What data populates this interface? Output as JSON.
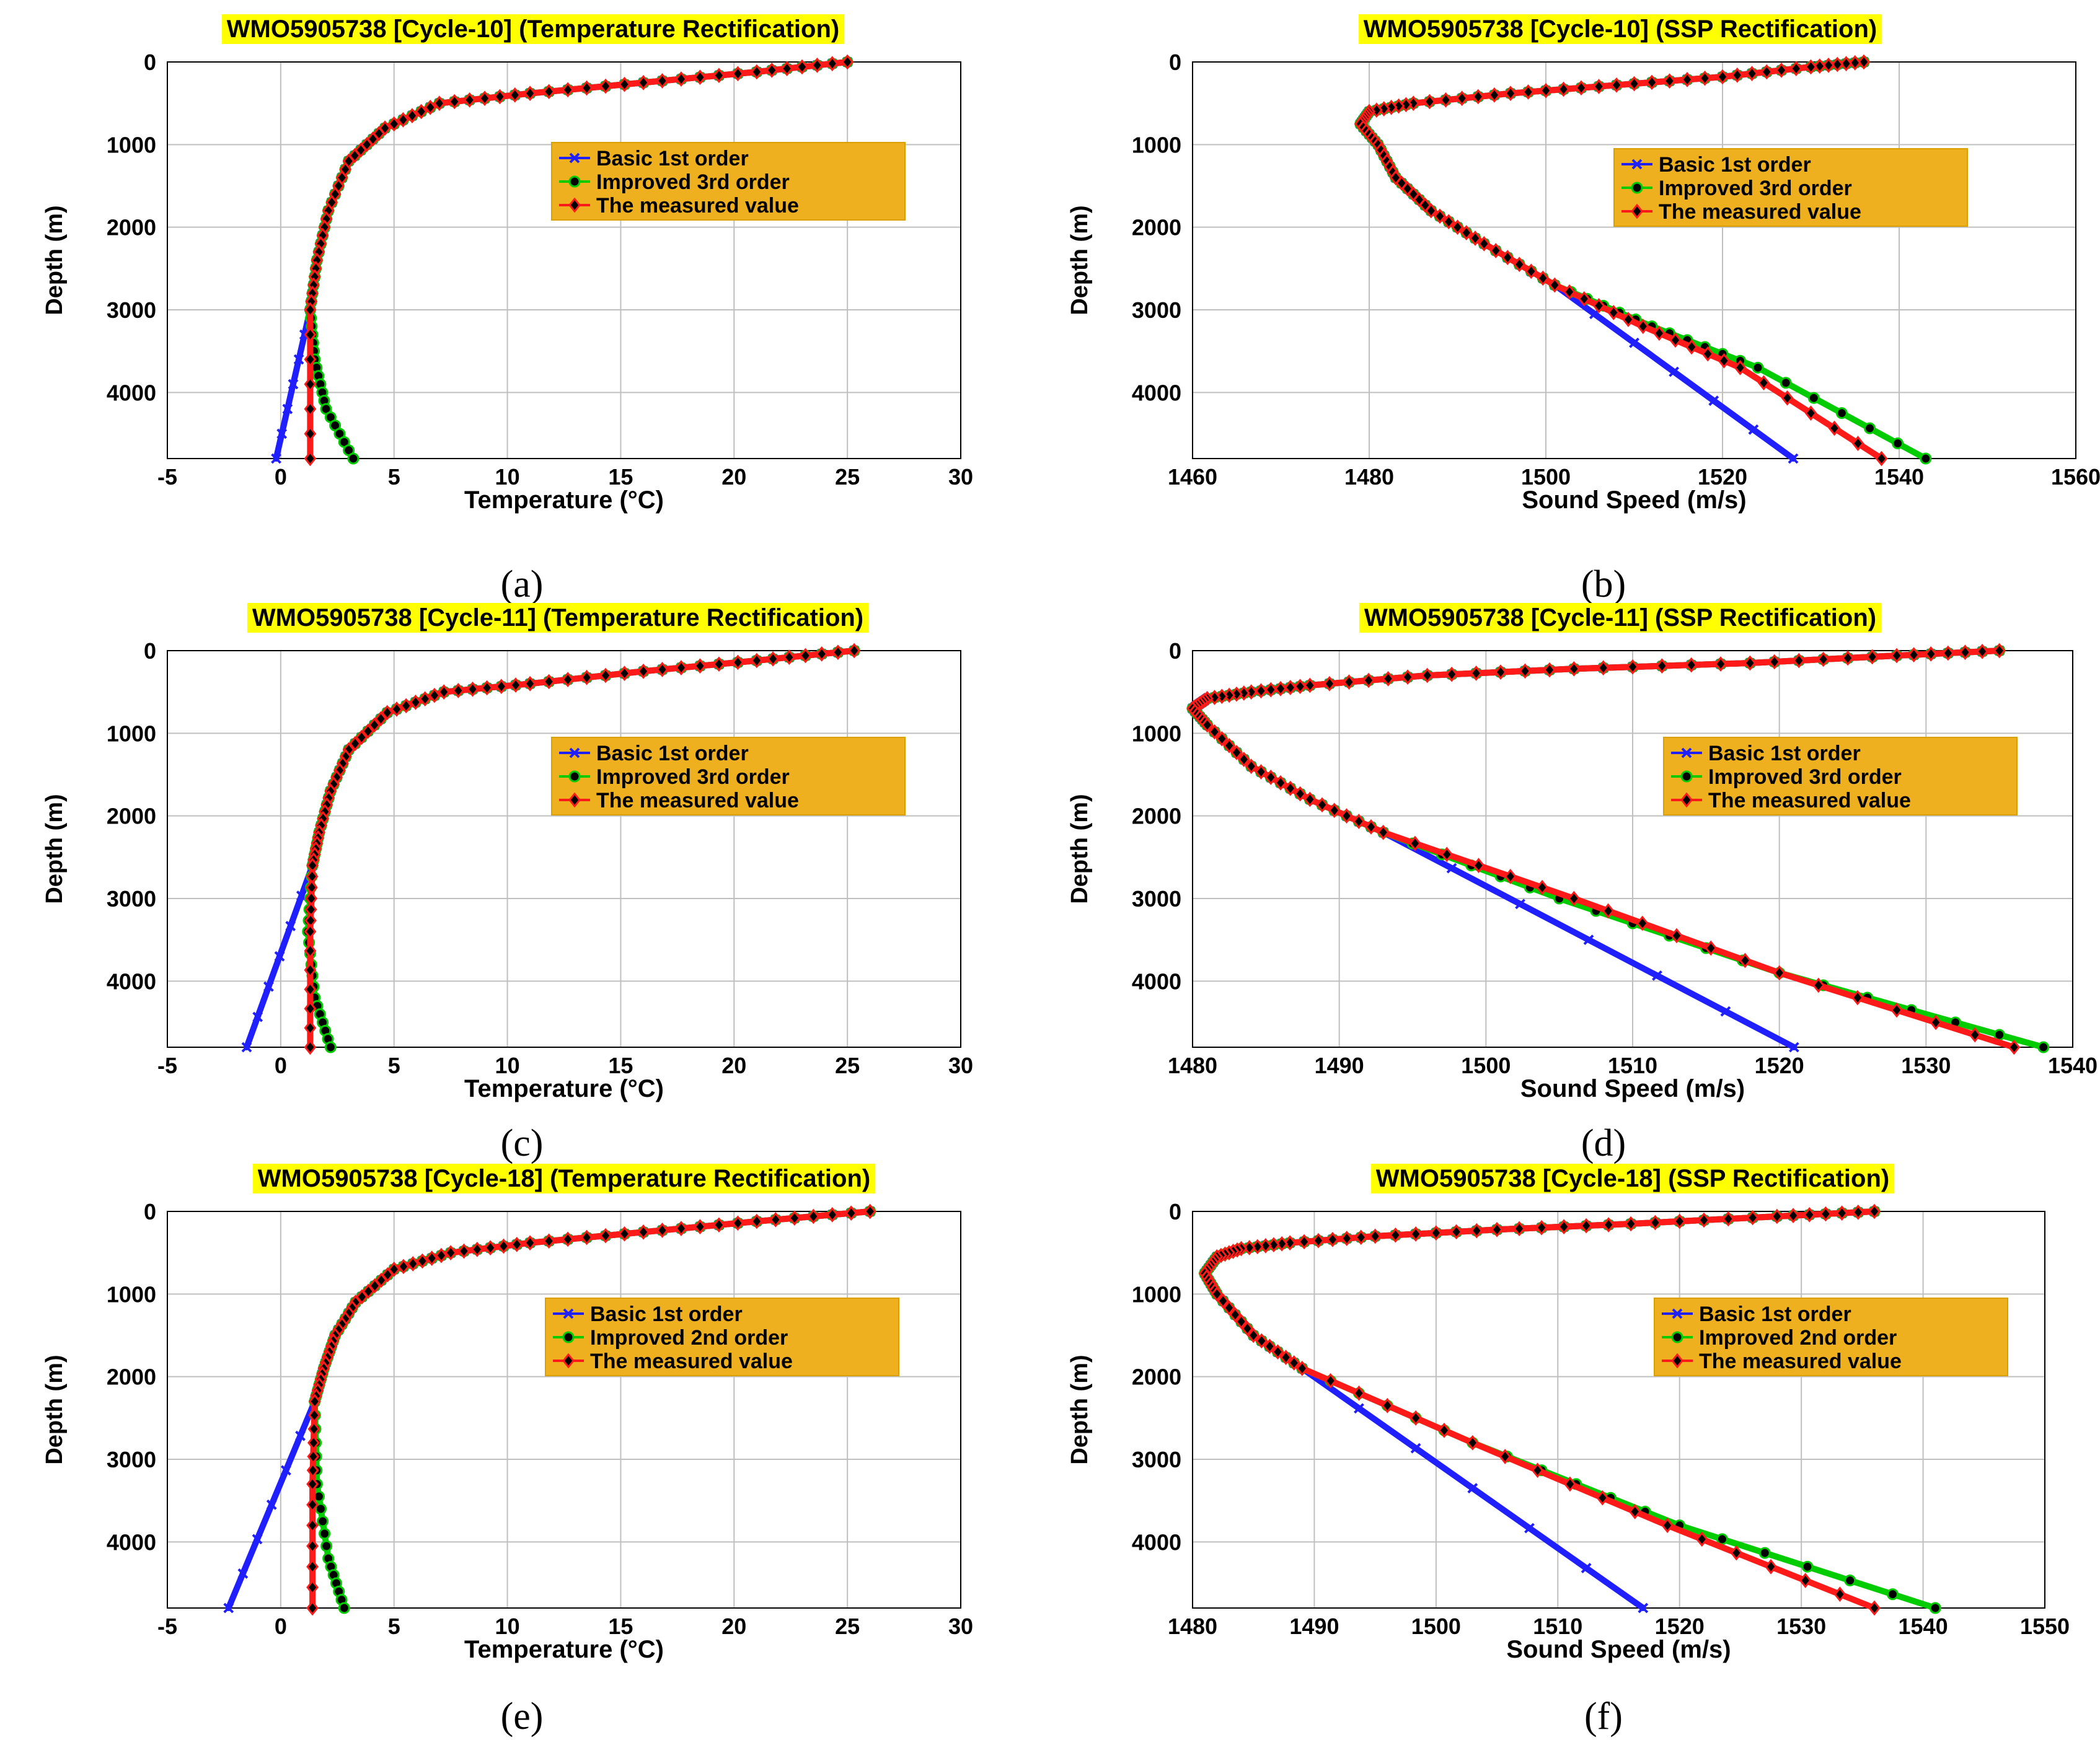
{
  "chart_data": [
    {
      "id": "a",
      "type": "line",
      "panel_label": "(a)",
      "title": "WMO5905738 [Cycle-10] (Temperature Rectification)",
      "xlabel": "Temperature (°C)",
      "ylabel": "Depth (m)",
      "xlim": [
        -5,
        30
      ],
      "ylim": [
        0,
        4800
      ],
      "y_inverted": true,
      "grid": true,
      "xticks": [
        -5,
        0,
        5,
        10,
        15,
        20,
        25,
        30
      ],
      "yticks": [
        0,
        1000,
        2000,
        3000,
        4000
      ],
      "legend_position": "upper-right",
      "series": [
        {
          "name": "Basic 1st order",
          "color": "#1f1fff",
          "marker": "x",
          "x": [
            1.3,
            1.6,
            2.1,
            3.0,
            4.6,
            7.0,
            11.0,
            16.0,
            21.0,
            25.0
          ],
          "y": [
            3000,
            2400,
            1800,
            1200,
            800,
            500,
            380,
            250,
            120,
            0
          ],
          "deep_x": [
            1.3,
            -0.2
          ],
          "deep_y": [
            3000,
            4800
          ]
        },
        {
          "name": "Improved 3rd order",
          "color": "#00cc00",
          "marker": "o",
          "x": [
            1.3,
            1.6,
            2.1,
            3.0,
            4.6,
            7.0,
            11.0,
            16.0,
            21.0,
            25.0
          ],
          "y": [
            3000,
            2400,
            1800,
            1200,
            800,
            500,
            380,
            250,
            120,
            0
          ],
          "deep_x": [
            1.3,
            1.5,
            2.0,
            3.2
          ],
          "deep_y": [
            3000,
            3600,
            4200,
            4800
          ]
        },
        {
          "name": "The measured value",
          "color": "#ff1a1a",
          "marker": "diamond",
          "x": [
            1.3,
            1.6,
            2.1,
            3.0,
            4.6,
            7.0,
            11.0,
            16.0,
            21.0,
            25.0
          ],
          "y": [
            3000,
            2400,
            1800,
            1200,
            800,
            500,
            380,
            250,
            120,
            0
          ],
          "deep_x": [
            1.3,
            1.3
          ],
          "deep_y": [
            3000,
            4800
          ]
        }
      ]
    },
    {
      "id": "b",
      "type": "line",
      "panel_label": "(b)",
      "title": "WMO5905738 [Cycle-10] (SSP Rectification)",
      "xlabel": "Sound Speed (m/s)",
      "ylabel": "Depth (m)",
      "xlim": [
        1460,
        1560
      ],
      "ylim": [
        0,
        4800
      ],
      "y_inverted": true,
      "grid": true,
      "xticks": [
        1460,
        1480,
        1500,
        1520,
        1540,
        1560
      ],
      "yticks": [
        0,
        1000,
        2000,
        3000,
        4000
      ],
      "legend_position": "upper-right",
      "series": [
        {
          "name": "Basic 1st order",
          "color": "#1f1fff",
          "marker": "x",
          "x": [
            1536,
            1530,
            1520,
            1508,
            1496,
            1485,
            1480,
            1479,
            1481,
            1483,
            1487,
            1493,
            1501
          ],
          "y": [
            0,
            60,
            180,
            280,
            380,
            500,
            600,
            750,
            1000,
            1400,
            1800,
            2200,
            2700
          ],
          "deep_x": [
            1501,
            1528
          ],
          "deep_y": [
            2700,
            4800
          ]
        },
        {
          "name": "Improved 3rd order",
          "color": "#00cc00",
          "marker": "o",
          "x": [
            1536,
            1530,
            1520,
            1508,
            1496,
            1485,
            1480,
            1479,
            1481,
            1483,
            1487,
            1493,
            1501
          ],
          "y": [
            0,
            60,
            180,
            280,
            380,
            500,
            600,
            750,
            1000,
            1400,
            1800,
            2200,
            2700
          ],
          "deep_x": [
            1501,
            1512,
            1524,
            1543
          ],
          "deep_y": [
            2700,
            3200,
            3700,
            4800
          ]
        },
        {
          "name": "The measured value",
          "color": "#ff1a1a",
          "marker": "diamond",
          "x": [
            1536,
            1530,
            1520,
            1508,
            1496,
            1485,
            1480,
            1479,
            1481,
            1483,
            1487,
            1493,
            1501
          ],
          "y": [
            0,
            60,
            180,
            280,
            380,
            500,
            600,
            750,
            1000,
            1400,
            1800,
            2200,
            2700
          ],
          "deep_x": [
            1501,
            1511,
            1522,
            1538
          ],
          "deep_y": [
            2700,
            3200,
            3700,
            4800
          ]
        }
      ]
    },
    {
      "id": "c",
      "type": "line",
      "panel_label": "(c)",
      "title": "WMO5905738 [Cycle-11] (Temperature Rectification)",
      "xlabel": "Temperature (°C)",
      "ylabel": "Depth (m)",
      "xlim": [
        -5,
        30
      ],
      "ylim": [
        0,
        4800
      ],
      "y_inverted": true,
      "grid": true,
      "xticks": [
        -5,
        0,
        5,
        10,
        15,
        20,
        25,
        30
      ],
      "yticks": [
        0,
        1000,
        2000,
        3000,
        4000
      ],
      "legend_position": "upper-right",
      "series": [
        {
          "name": "Basic 1st order",
          "color": "#1f1fff",
          "marker": "x",
          "x": [
            1.4,
            1.7,
            2.2,
            3.0,
            4.7,
            7.2,
            11.0,
            16.0,
            21.0,
            25.3
          ],
          "y": [
            2600,
            2200,
            1700,
            1200,
            750,
            500,
            400,
            250,
            120,
            0
          ],
          "deep_x": [
            1.4,
            -1.5
          ],
          "deep_y": [
            2600,
            4800
          ]
        },
        {
          "name": "Improved 3rd order",
          "color": "#00cc00",
          "marker": "o",
          "x": [
            1.4,
            1.7,
            2.2,
            3.0,
            4.7,
            7.2,
            11.0,
            16.0,
            21.0,
            25.3
          ],
          "y": [
            2600,
            2200,
            1700,
            1200,
            750,
            500,
            400,
            250,
            120,
            0
          ],
          "deep_x": [
            1.4,
            1.2,
            1.5,
            2.2
          ],
          "deep_y": [
            2600,
            3400,
            4200,
            4800
          ]
        },
        {
          "name": "The measured value",
          "color": "#ff1a1a",
          "marker": "diamond",
          "x": [
            1.4,
            1.7,
            2.2,
            3.0,
            4.7,
            7.2,
            11.0,
            16.0,
            21.0,
            25.3
          ],
          "y": [
            2600,
            2200,
            1700,
            1200,
            750,
            500,
            400,
            250,
            120,
            0
          ],
          "deep_x": [
            1.4,
            1.3,
            1.3
          ],
          "deep_y": [
            2600,
            3400,
            4800
          ]
        }
      ]
    },
    {
      "id": "d",
      "type": "line",
      "panel_label": "(d)",
      "title": "WMO5905738 [Cycle-11] (SSP Rectification)",
      "xlabel": "Sound Speed (m/s)",
      "ylabel": "Depth (m)",
      "xlim": [
        1480,
        1540
      ],
      "ylim": [
        0,
        4800
      ],
      "y_inverted": true,
      "grid": true,
      "xticks": [
        1480,
        1490,
        1500,
        1510,
        1520,
        1530,
        1540
      ],
      "yticks": [
        0,
        1000,
        2000,
        3000,
        4000
      ],
      "legend_position": "upper-right",
      "series": [
        {
          "name": "Basic 1st order",
          "color": "#1f1fff",
          "marker": "x",
          "x": [
            1535,
            1528,
            1518,
            1506,
            1496,
            1488,
            1484,
            1481,
            1480,
            1481,
            1484,
            1488,
            1493
          ],
          "y": [
            0,
            60,
            150,
            220,
            300,
            420,
            500,
            580,
            700,
            900,
            1400,
            1800,
            2200
          ],
          "deep_x": [
            1493,
            1521
          ],
          "deep_y": [
            2200,
            4800
          ]
        },
        {
          "name": "Improved 3rd order",
          "color": "#00cc00",
          "marker": "o",
          "x": [
            1535,
            1528,
            1518,
            1506,
            1496,
            1488,
            1484,
            1481,
            1480,
            1481,
            1484,
            1488,
            1493
          ],
          "y": [
            0,
            60,
            150,
            220,
            300,
            420,
            500,
            580,
            700,
            900,
            1400,
            1800,
            2200
          ],
          "deep_x": [
            1493,
            1505,
            1520,
            1538
          ],
          "deep_y": [
            2200,
            3000,
            3900,
            4800
          ]
        },
        {
          "name": "The measured value",
          "color": "#ff1a1a",
          "marker": "diamond",
          "x": [
            1535,
            1528,
            1518,
            1506,
            1496,
            1488,
            1484,
            1481,
            1480,
            1481,
            1484,
            1488,
            1493
          ],
          "y": [
            0,
            60,
            150,
            220,
            300,
            420,
            500,
            580,
            700,
            900,
            1400,
            1800,
            2200
          ],
          "deep_x": [
            1493,
            1506,
            1520,
            1536
          ],
          "deep_y": [
            2200,
            3000,
            3900,
            4800
          ]
        }
      ]
    },
    {
      "id": "e",
      "type": "line",
      "panel_label": "(e)",
      "title": "WMO5905738 [Cycle-18] (Temperature Rectification)",
      "xlabel": "Temperature (°C)",
      "ylabel": "Depth (m)",
      "xlim": [
        -5,
        30
      ],
      "ylim": [
        0,
        4800
      ],
      "y_inverted": true,
      "grid": true,
      "xticks": [
        -5,
        0,
        5,
        10,
        15,
        20,
        25,
        30
      ],
      "yticks": [
        0,
        1000,
        2000,
        3000,
        4000
      ],
      "legend_position": "upper-right",
      "series": [
        {
          "name": "Basic 1st order",
          "color": "#1f1fff",
          "marker": "x",
          "x": [
            1.5,
            1.9,
            2.4,
            3.3,
            5.0,
            7.5,
            11.0,
            16.0,
            21.0,
            26.0
          ],
          "y": [
            2300,
            1900,
            1500,
            1100,
            700,
            500,
            380,
            250,
            120,
            0
          ],
          "deep_x": [
            1.5,
            -2.3
          ],
          "deep_y": [
            2300,
            4800
          ]
        },
        {
          "name": "Improved 2nd order",
          "color": "#00cc00",
          "marker": "o",
          "x": [
            1.5,
            1.9,
            2.4,
            3.3,
            5.0,
            7.5,
            11.0,
            16.0,
            21.0,
            26.0
          ],
          "y": [
            2300,
            1900,
            1500,
            1100,
            700,
            500,
            380,
            250,
            120,
            0
          ],
          "deep_x": [
            1.5,
            1.6,
            2.1,
            2.8
          ],
          "deep_y": [
            2300,
            3300,
            4200,
            4800
          ]
        },
        {
          "name": "The measured value",
          "color": "#ff1a1a",
          "marker": "diamond",
          "x": [
            1.5,
            1.9,
            2.4,
            3.3,
            5.0,
            7.5,
            11.0,
            16.0,
            21.0,
            26.0
          ],
          "y": [
            2300,
            1900,
            1500,
            1100,
            700,
            500,
            380,
            250,
            120,
            0
          ],
          "deep_x": [
            1.5,
            1.4,
            1.4
          ],
          "deep_y": [
            2300,
            3300,
            4800
          ]
        }
      ]
    },
    {
      "id": "f",
      "type": "line",
      "panel_label": "(f)",
      "title": "WMO5905738 [Cycle-18] (SSP Rectification)",
      "xlabel": "Sound Speed (m/s)",
      "ylabel": "Depth (m)",
      "xlim": [
        1480,
        1550
      ],
      "ylim": [
        0,
        4800
      ],
      "y_inverted": true,
      "grid": true,
      "xticks": [
        1480,
        1490,
        1500,
        1510,
        1520,
        1530,
        1540,
        1550
      ],
      "yticks": [
        0,
        1000,
        2000,
        3000,
        4000
      ],
      "legend_position": "upper-right",
      "series": [
        {
          "name": "Basic 1st order",
          "color": "#1f1fff",
          "marker": "x",
          "x": [
            1536,
            1528,
            1516,
            1505,
            1495,
            1488,
            1484,
            1482,
            1481,
            1482,
            1485,
            1489
          ],
          "y": [
            0,
            60,
            150,
            220,
            300,
            380,
            450,
            550,
            750,
            1000,
            1500,
            1900
          ],
          "deep_x": [
            1489,
            1517
          ],
          "deep_y": [
            1900,
            4800
          ]
        },
        {
          "name": "Improved 2nd order",
          "color": "#00cc00",
          "marker": "o",
          "x": [
            1536,
            1528,
            1516,
            1505,
            1495,
            1488,
            1484,
            1482,
            1481,
            1482,
            1485,
            1489
          ],
          "y": [
            0,
            60,
            150,
            220,
            300,
            380,
            450,
            550,
            750,
            1000,
            1500,
            1900
          ],
          "deep_x": [
            1489,
            1503,
            1520,
            1541
          ],
          "deep_y": [
            1900,
            2800,
            3800,
            4800
          ]
        },
        {
          "name": "The measured value",
          "color": "#ff1a1a",
          "marker": "diamond",
          "x": [
            1536,
            1528,
            1516,
            1505,
            1495,
            1488,
            1484,
            1482,
            1481,
            1482,
            1485,
            1489
          ],
          "y": [
            0,
            60,
            150,
            220,
            300,
            380,
            450,
            550,
            750,
            1000,
            1500,
            1900
          ],
          "deep_x": [
            1489,
            1503,
            1519,
            1536
          ],
          "deep_y": [
            1900,
            2800,
            3800,
            4800
          ]
        }
      ]
    }
  ],
  "colors": {
    "title_highlight": "#ffff00",
    "legend_bg": "#eeb01f",
    "grid": "#bfbfbf"
  }
}
